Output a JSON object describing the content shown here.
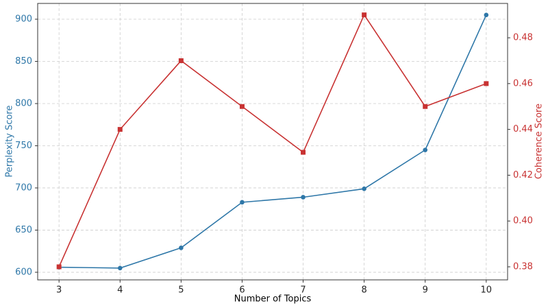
{
  "chart_data": {
    "type": "line",
    "x_label": "Number of Topics",
    "y_label": "Perplexity Score",
    "y2_label": "Coherence Score",
    "x": [
      3,
      4,
      5,
      6,
      7,
      8,
      9,
      10
    ],
    "series": [
      {
        "name": "Perplexity Score",
        "color": "#2e77a8",
        "marker": "circle",
        "values": [
          606,
          605,
          629,
          683,
          689,
          699,
          745,
          905
        ]
      },
      {
        "name": "Coherence Score",
        "color": "#c83232",
        "marker": "square",
        "axis": "y2",
        "values": [
          0.38,
          0.44,
          0.47,
          0.45,
          0.43,
          0.49,
          0.45,
          0.46
        ]
      }
    ],
    "xlim": [
      2.65,
      10.35
    ],
    "xticks": [
      3,
      4,
      5,
      6,
      7,
      8,
      9,
      10
    ],
    "ylim": [
      591,
      918.7
    ],
    "yticks": [
      600,
      650,
      700,
      750,
      800,
      850,
      900
    ],
    "y2lim": [
      0.3743,
      0.495
    ],
    "y2ticks": [
      0.38,
      {
        "value": 0.4,
        "label": "0.40"
      },
      0.42,
      0.44,
      0.46,
      0.48
    ],
    "grid": true
  }
}
